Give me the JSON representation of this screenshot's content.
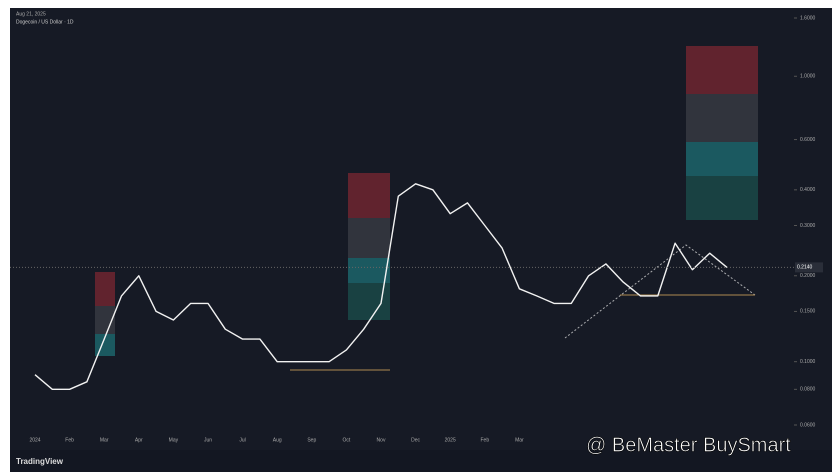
{
  "chart_data": {
    "type": "line",
    "title": "Dogecoin / US Dollar · 1D",
    "header_note": "Aug 21, 2025",
    "watermark": "@ BeMaster BuySmart",
    "brand": "TradingView",
    "price_label": "0.2140",
    "log_scale": true,
    "grid": false,
    "categories": [
      "2024",
      null,
      "Feb",
      null,
      "Mar",
      null,
      "Apr",
      null,
      "May",
      null,
      "Jun",
      null,
      "Jul",
      null,
      "Aug",
      null,
      "Sep",
      null,
      "Oct",
      null,
      "Nov",
      null,
      "Dec",
      null,
      "2025",
      null,
      "Feb",
      null,
      "Mar",
      null,
      null,
      null,
      null,
      null,
      null,
      null,
      null,
      null,
      null,
      null,
      null
    ],
    "series": [
      {
        "name": "DOGEUSD",
        "color": "#f2f2f2",
        "values": [
          0.09,
          0.08,
          0.08,
          0.085,
          0.12,
          0.17,
          0.2,
          0.15,
          0.14,
          0.16,
          0.16,
          0.13,
          0.12,
          0.12,
          0.1,
          0.1,
          0.1,
          0.1,
          0.11,
          0.13,
          0.16,
          0.38,
          0.42,
          0.4,
          0.33,
          0.36,
          0.3,
          0.25,
          0.18,
          0.17,
          0.16,
          0.16,
          0.2,
          0.22,
          0.19,
          0.17,
          0.17,
          0.26,
          0.21,
          0.24,
          0.214
        ]
      }
    ],
    "ylim": [
      0.06,
      1.6
    ],
    "yticks": [
      {
        "value": 1.6,
        "label": "1.6000"
      },
      {
        "value": 1.0,
        "label": "1.0000"
      },
      {
        "value": 0.6,
        "label": "0.6000"
      },
      {
        "value": 0.4,
        "label": "0.4000"
      },
      {
        "value": 0.3,
        "label": "0.3000"
      },
      {
        "value": 0.2,
        "label": "0.2000"
      },
      {
        "value": 0.15,
        "label": "0.1500"
      },
      {
        "value": 0.1,
        "label": "0.1000"
      },
      {
        "value": 0.08,
        "label": "0.0800"
      },
      {
        "value": 0.06,
        "label": "0.0600"
      }
    ]
  }
}
